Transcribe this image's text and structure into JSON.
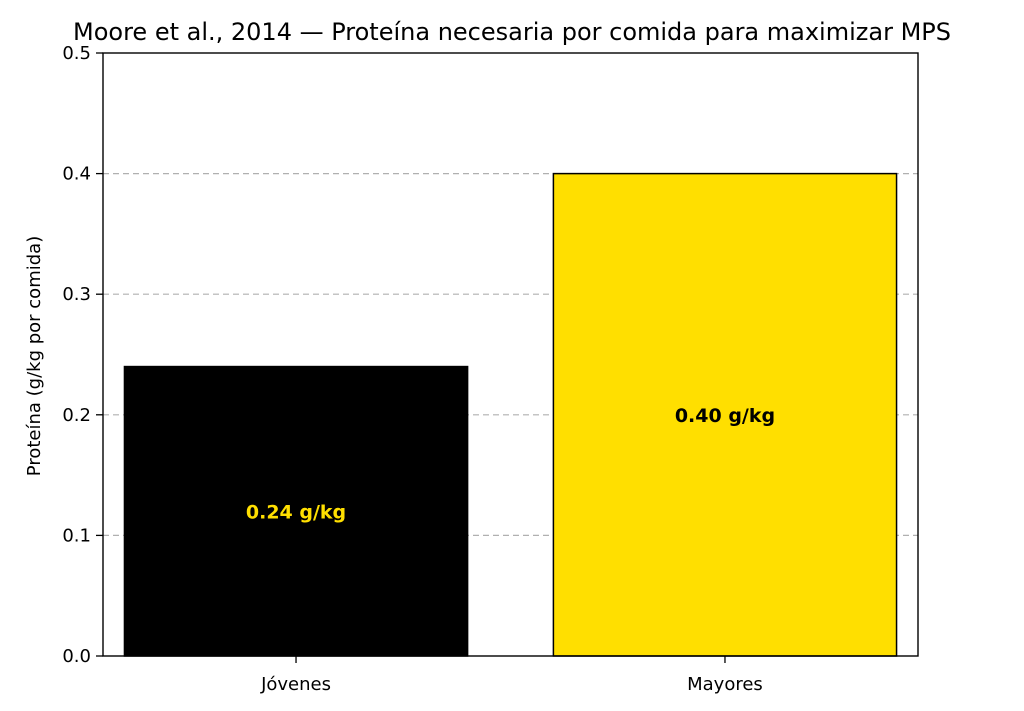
{
  "chart_data": {
    "type": "bar",
    "title": "Moore et al., 2014 — Proteína necesaria por comida para maximizar MPS",
    "xlabel": "",
    "ylabel": "Proteína (g/kg por comida)",
    "categories": [
      "Jóvenes",
      "Mayores"
    ],
    "values": [
      0.24,
      0.4
    ],
    "bar_colors": [
      "#000000",
      "#FFDF00"
    ],
    "data_labels": [
      "0.24 g/kg",
      "0.40 g/kg"
    ],
    "data_label_colors": [
      "#FFDF00",
      "#000000"
    ],
    "ylim": [
      0,
      0.5
    ],
    "yticks": [
      "0.0",
      "0.1",
      "0.2",
      "0.3",
      "0.4",
      "0.5"
    ],
    "ytick_values": [
      0,
      0.1,
      0.2,
      0.3,
      0.4,
      0.5
    ],
    "grid": "horizontal dashed",
    "legend": "none"
  }
}
